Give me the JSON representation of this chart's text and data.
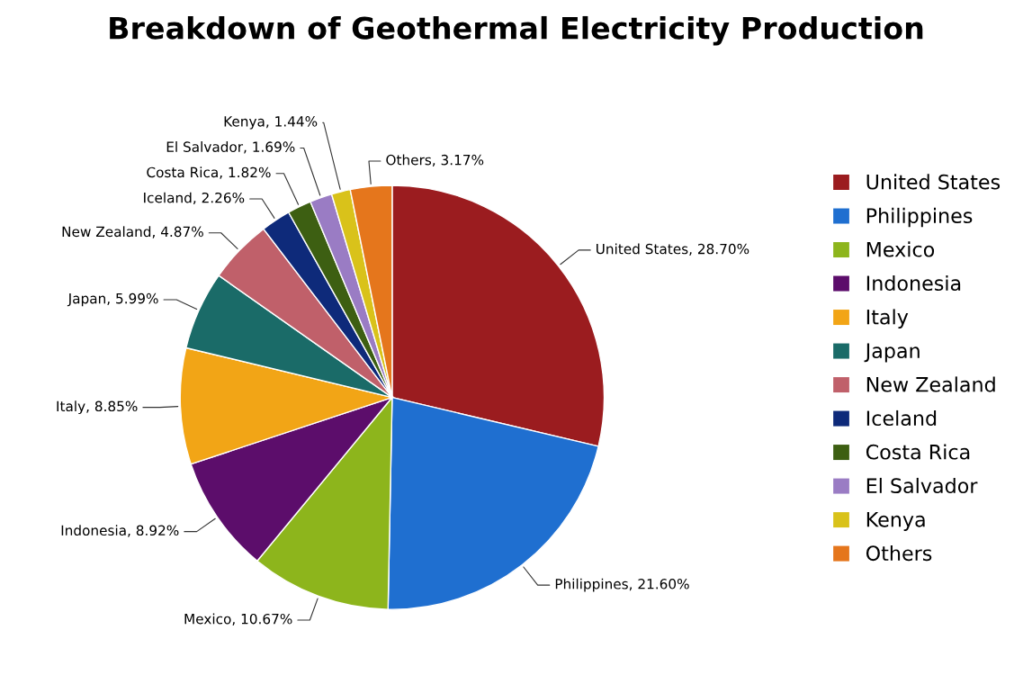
{
  "chart_data": {
    "type": "pie",
    "title": "Breakdown of Geothermal Electricity Production",
    "categories": [
      "United States",
      "Philippines",
      "Mexico",
      "Indonesia",
      "Italy",
      "Japan",
      "New Zealand",
      "Iceland",
      "Costa Rica",
      "El Salvador",
      "Kenya",
      "Others"
    ],
    "values": [
      28.7,
      21.6,
      10.67,
      8.92,
      8.85,
      5.99,
      4.87,
      2.26,
      1.82,
      1.69,
      1.44,
      3.17
    ],
    "colors": [
      "#9b1c1f",
      "#1f6fd0",
      "#8db51c",
      "#5c0d6b",
      "#f2a516",
      "#1a6b68",
      "#c0606a",
      "#0e2a7a",
      "#3d5f12",
      "#9a7cc4",
      "#d9c21a",
      "#e5761c"
    ],
    "value_labels": [
      "United States, 28.70%",
      "Philippines, 21.60%",
      "Mexico, 10.67%",
      "Indonesia, 8.92%",
      "Italy, 8.85%",
      "Japan, 5.99%",
      "New Zealand, 4.87%",
      "Iceland, 2.26%",
      "Costa Rica, 1.82%",
      "El Salvador, 1.69%",
      "Kenya, 1.44%",
      "Others, 3.17%"
    ],
    "legend": "right"
  }
}
